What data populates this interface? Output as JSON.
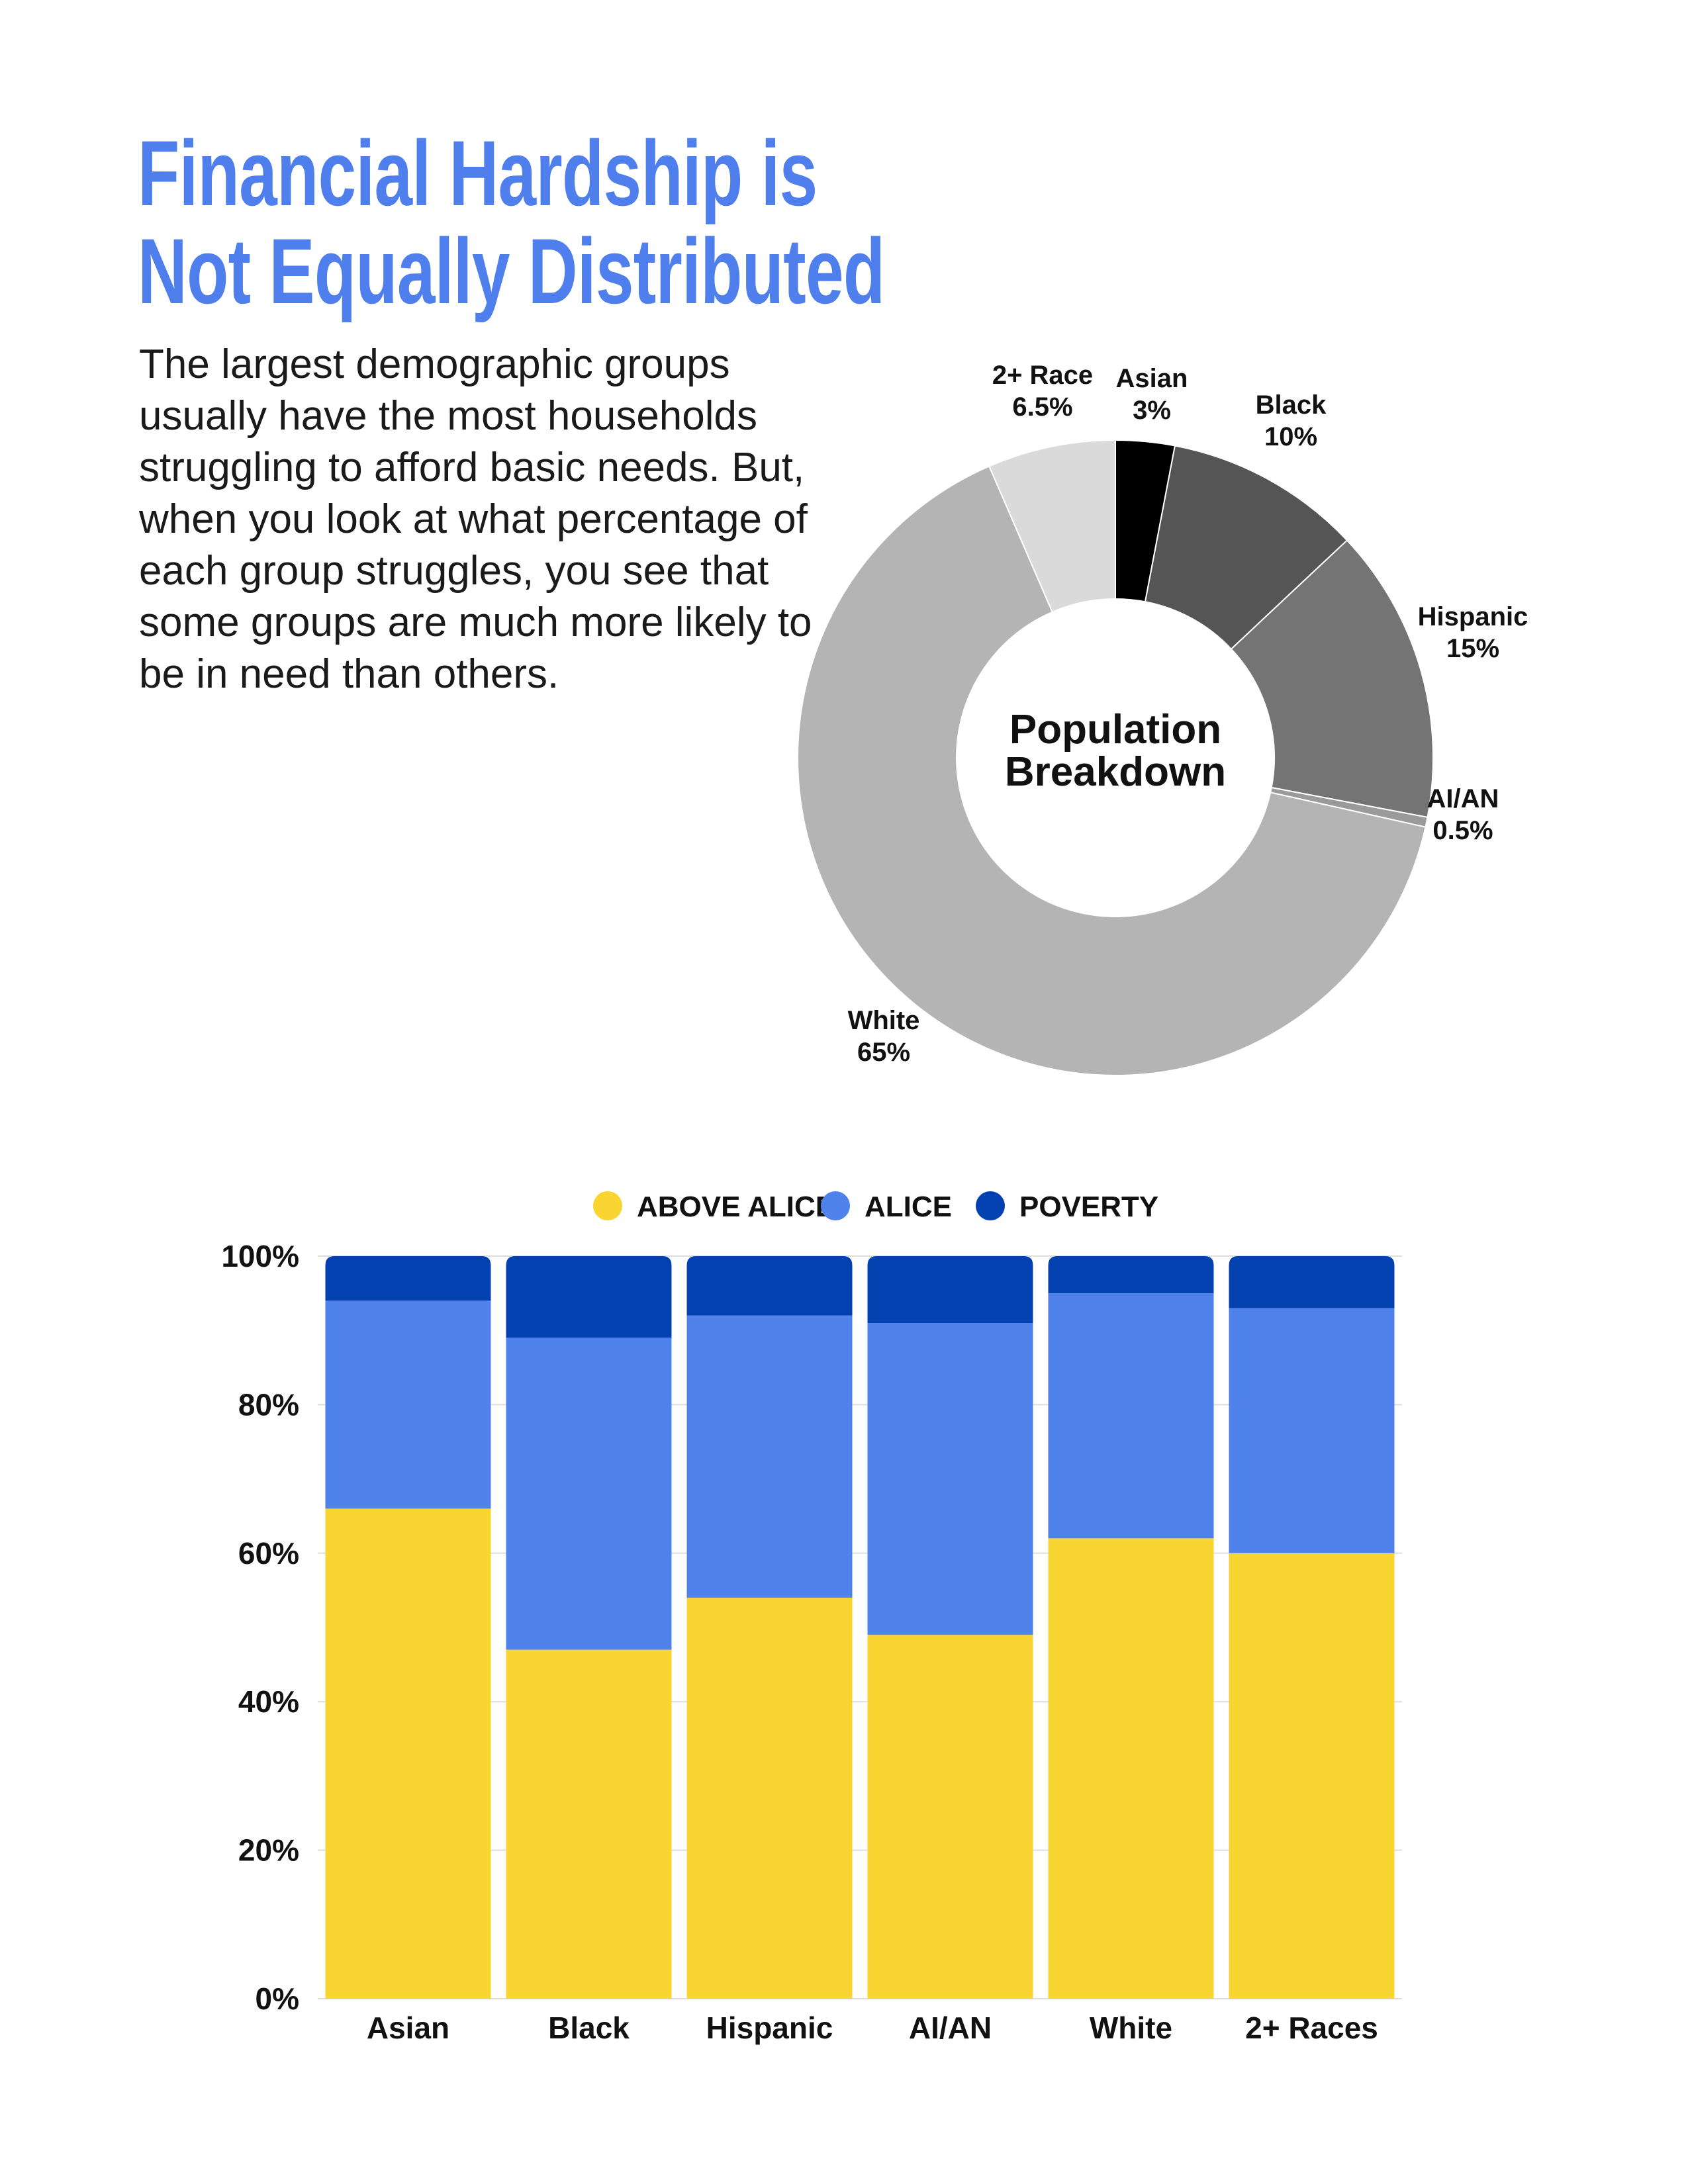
{
  "title": {
    "line1": "Financial Hardship is",
    "line2": "Not Equally Distributed"
  },
  "intro": "The largest demographic groups usually have the most households struggling to afford basic needs. But, when you look at what percentage of each group struggles, you see that some groups are much more likely to be in need than others.",
  "colors": {
    "title": "#4f7fec",
    "above_alice": "#f8d530",
    "alice": "#5082ec",
    "poverty": "#0340b0"
  },
  "chart_data": [
    {
      "type": "pie",
      "title": "Population Breakdown",
      "center_label": [
        "Population",
        "Breakdown"
      ],
      "slices": [
        {
          "name": "Asian",
          "value": 3,
          "label": "3%",
          "color": "#000000"
        },
        {
          "name": "Black",
          "value": 10,
          "label": "10%",
          "color": "#555555"
        },
        {
          "name": "Hispanic",
          "value": 15,
          "label": "15%",
          "color": "#747474"
        },
        {
          "name": "AI/AN",
          "value": 0.5,
          "label": "0.5%",
          "color": "#9a9a9a"
        },
        {
          "name": "White",
          "value": 65,
          "label": "65%",
          "color": "#b4b4b4"
        },
        {
          "name": "2+ Race",
          "value": 6.5,
          "label": "6.5%",
          "color": "#dadada"
        }
      ]
    },
    {
      "type": "bar",
      "stacked": true,
      "categories": [
        "Asian",
        "Black",
        "Hispanic",
        "AI/AN",
        "White",
        "2+ Races"
      ],
      "series": [
        {
          "name": "ABOVE ALICE",
          "key": "above_alice",
          "values": [
            66,
            47,
            54,
            49,
            62,
            60
          ]
        },
        {
          "name": "ALICE",
          "key": "alice",
          "values": [
            28,
            42,
            38,
            42,
            33,
            33
          ]
        },
        {
          "name": "POVERTY",
          "key": "poverty",
          "values": [
            6,
            11,
            8,
            9,
            5,
            7
          ]
        }
      ],
      "ylim": [
        0,
        100
      ],
      "yticks": [
        0,
        20,
        40,
        60,
        80,
        100
      ],
      "ytick_labels": [
        "0%",
        "20%",
        "40%",
        "60%",
        "80%",
        "100%"
      ],
      "grid": true,
      "legend_position": "top"
    }
  ]
}
